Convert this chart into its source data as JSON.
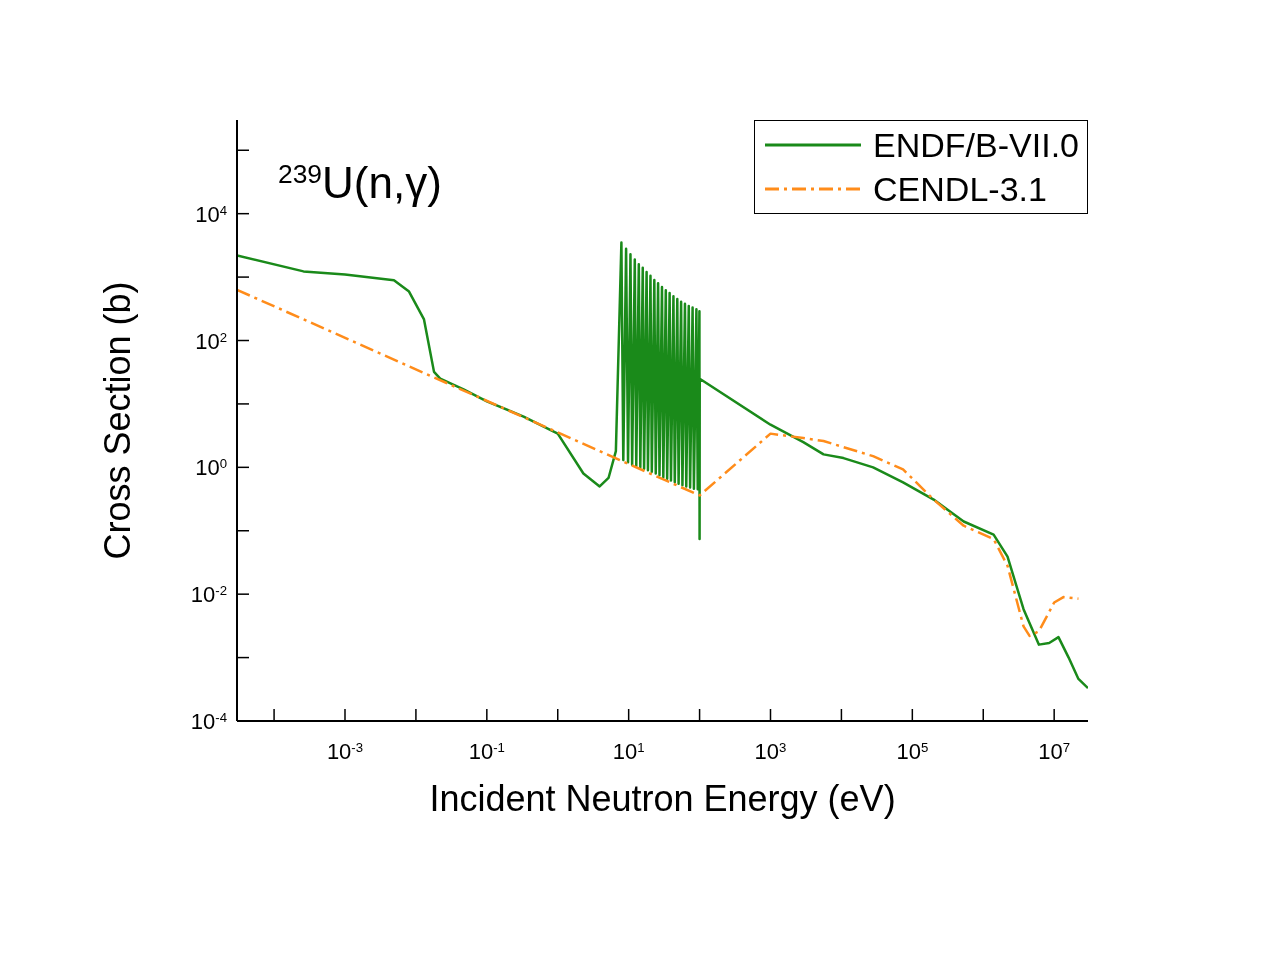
{
  "chart_data": {
    "type": "line",
    "xlabel": "Incident Neutron Energy (eV)",
    "ylabel": "Cross Section (b)",
    "annotations": [
      "$^{239}$U(n,γ)"
    ],
    "log": "xy",
    "legend": "top right",
    "marker": "none",
    "xlim": [
      3e-05,
      30000000.0
    ],
    "ylim": [
      0.0001,
      300000.0
    ],
    "xticks": [
      {
        "value": 0.0001,
        "label": null
      },
      {
        "value": 0.001,
        "label": "10$^{-3}$"
      },
      {
        "value": 0.01,
        "label": null
      },
      {
        "value": 0.1,
        "label": "10$^{-1}$"
      },
      {
        "value": 1,
        "label": null
      },
      {
        "value": 10,
        "label": "10$^{1}$"
      },
      {
        "value": 100,
        "label": null
      },
      {
        "value": 1000,
        "label": "10$^{3}$"
      },
      {
        "value": 10000.0,
        "label": null
      },
      {
        "value": 100000.0,
        "label": "10$^{5}$"
      },
      {
        "value": 1000000.0,
        "label": null
      },
      {
        "value": 10000000.0,
        "label": "10$^{7}$"
      }
    ],
    "yticks": [
      {
        "value": 0.0001,
        "label": "10$^{-4}$"
      },
      {
        "value": 0.001,
        "label": null
      },
      {
        "value": 0.01,
        "label": "10$^{-2}$"
      },
      {
        "value": 0.1,
        "label": null
      },
      {
        "value": 1,
        "label": "10$^{0}$"
      },
      {
        "value": 10,
        "label": null
      },
      {
        "value": 100,
        "label": "10$^{2}$"
      },
      {
        "value": 1000,
        "label": null
      },
      {
        "value": 10000.0,
        "label": "10$^{4}$"
      },
      {
        "value": 100000.0,
        "label": null
      }
    ],
    "series": [
      {
        "name": "ENDF/B-VII.0",
        "color": "#1a8a1a",
        "line_style": "solid",
        "x": [
          3e-05,
          0.00026,
          0.001,
          0.0049,
          0.008,
          0.013,
          0.018,
          0.022,
          0.047,
          0.1,
          0.33,
          1,
          2.3,
          3.9,
          5.2,
          6.6,
          7.9,
          8.4,
          9.2,
          9.8,
          10.6,
          11.2,
          12.2,
          12.8,
          13.9,
          14.6,
          15.8,
          16.5,
          17.9,
          18.7,
          20.3,
          21.2,
          23,
          24.1,
          26,
          27.2,
          29.5,
          30.8,
          33.4,
          34.9,
          37.8,
          39.5,
          42.8,
          44.7,
          48.5,
          50.6,
          54.9,
          57.3,
          62.2,
          64.9,
          70.4,
          73.5,
          79.7,
          83.2,
          90.2,
          94.2,
          99.5,
          100,
          100.5,
          1000,
          2900,
          5600,
          10700,
          28000,
          74000,
          200000,
          530000,
          1400000,
          2200000,
          3700000,
          6100000,
          8500000,
          11500000,
          16000000,
          22000000,
          30000000
        ],
        "values": [
          2200,
          1230,
          1100,
          890,
          590,
          215,
          32,
          25,
          17,
          11,
          6.3,
          3.4,
          0.8,
          0.5,
          0.68,
          1.8,
          3500,
          1.3,
          2800,
          1.2,
          2300,
          1.1,
          1900,
          1.05,
          1600,
          1,
          1400,
          0.95,
          1200,
          0.9,
          1050,
          0.85,
          900,
          0.8,
          800,
          0.75,
          700,
          0.7,
          620,
          0.66,
          560,
          0.62,
          500,
          0.58,
          450,
          0.55,
          410,
          0.52,
          380,
          0.5,
          350,
          0.48,
          330,
          0.46,
          310,
          0.45,
          290,
          0.074,
          25,
          4.7,
          2.5,
          1.6,
          1.4,
          1,
          0.58,
          0.31,
          0.14,
          0.087,
          0.039,
          0.0058,
          0.0016,
          0.0017,
          0.0021,
          0.001,
          0.00046,
          0.00033
        ]
      },
      {
        "name": "CENDL-3.1",
        "color": "#ff8c1a",
        "line_style": "dashed",
        "x": [
          3e-05,
          100,
          1000,
          2900,
          5600,
          28000,
          74000,
          200000,
          530000,
          1400000,
          2200000,
          3700000,
          4500000,
          6100000,
          10000000,
          13500000,
          22000000
        ],
        "values": [
          630,
          0.36,
          3.4,
          2.9,
          2.6,
          1.5,
          0.93,
          0.31,
          0.12,
          0.074,
          0.028,
          0.0031,
          0.0022,
          0.0026,
          0.0074,
          0.009,
          0.0085
        ]
      }
    ]
  }
}
